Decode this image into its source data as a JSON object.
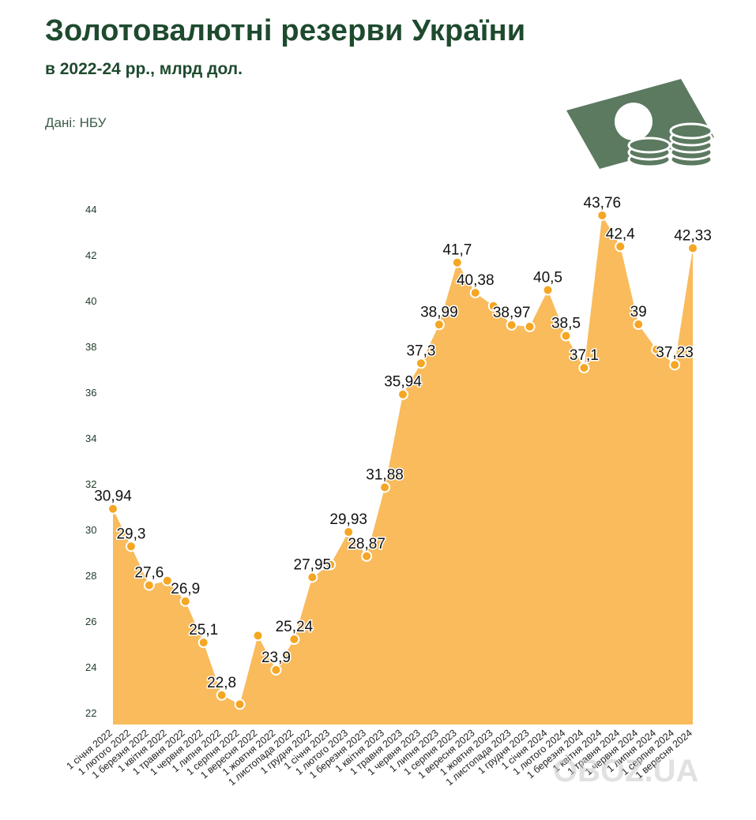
{
  "header": {
    "title": "Золотовалютні резерви України",
    "subtitle": "в 2022-24 рр., млрд дол.",
    "source": "Дані: НБУ"
  },
  "watermark": "OBOZ.UA",
  "colors": {
    "area": "#f9bb5b",
    "marker": "#f5a623",
    "title": "#1e4a2e",
    "money": "#5b7a60"
  },
  "chart_data": {
    "type": "area",
    "title": "Золотовалютні резерви України",
    "ylim": [
      22,
      44
    ],
    "yticks": [
      22,
      24,
      26,
      28,
      30,
      32,
      34,
      36,
      38,
      40,
      42,
      44
    ],
    "grid": false,
    "categories": [
      "1 січня 2022",
      "1 лютого 2022",
      "1 березня 2022",
      "1 квітня 2022",
      "1 травня 2022",
      "1 червня 2022",
      "1 липня 2022",
      "1 серпня 2022",
      "1 вересня 2022",
      "1 жовтня 2022",
      "1 листопада 2022",
      "1 грудня 2022",
      "1 січня 2023",
      "1 лютого 2023",
      "1 березня 2023",
      "1 квітня 2023",
      "1 травня 2023",
      "1 червня 2023",
      "1 липня 2023",
      "1 серпня 2023",
      "1 вересня 2023",
      "1 жовтня 2023",
      "1 листопада 2023",
      "1 грудня 2023",
      "1 січня 2024",
      "1 лютого 2024",
      "1 березня 2024",
      "1 квітня 2024",
      "1 травня 2024",
      "1 червня 2024",
      "1 липня 2024",
      "1 серпня 2024",
      "1 вересня 2024"
    ],
    "values": [
      30.94,
      29.3,
      27.6,
      27.8,
      26.9,
      25.1,
      22.8,
      22.4,
      25.4,
      23.9,
      25.24,
      27.95,
      28.5,
      29.93,
      28.87,
      31.88,
      35.94,
      37.3,
      38.99,
      41.7,
      40.38,
      39.8,
      38.97,
      38.9,
      40.5,
      38.5,
      37.1,
      43.76,
      42.4,
      39,
      37.9,
      37.23,
      42.33
    ],
    "labels": [
      "30,94",
      "29,3",
      "27,6",
      "",
      "26,9",
      "25,1",
      "22,8",
      "",
      "",
      "23,9",
      "25,24",
      "27,95",
      "",
      "29,93",
      "28,87",
      "31,88",
      "35,94",
      "37,3",
      "38,99",
      "41,7",
      "40,38",
      "",
      "38,97",
      "",
      "40,5",
      "38,5",
      "37,1",
      "43,76",
      "42,4",
      "39",
      "",
      "37,23",
      "42,33"
    ]
  }
}
